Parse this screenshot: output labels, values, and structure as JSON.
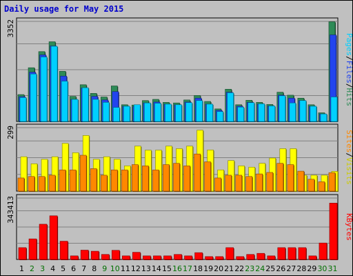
{
  "title": "Daily usage for May 2015",
  "chart_data": [
    {
      "type": "bar",
      "categories": [
        "1",
        "2",
        "3",
        "4",
        "5",
        "6",
        "7",
        "8",
        "9",
        "10",
        "11",
        "12",
        "13",
        "14",
        "15",
        "16",
        "17",
        "18",
        "19",
        "20",
        "21",
        "22",
        "23",
        "24",
        "25",
        "26",
        "27",
        "28",
        "29",
        "30",
        "31"
      ],
      "weekend_days": [
        "2",
        "3",
        "9",
        "10",
        "16",
        "17",
        "23",
        "24",
        "30",
        "31"
      ],
      "ylim": [
        0,
        3352
      ],
      "tick_label": "3352",
      "grid": true,
      "series": [
        {
          "name": "Hits",
          "color": "#2e8b57",
          "values": [
            900,
            1800,
            2340,
            2670,
            1680,
            840,
            1230,
            940,
            820,
            1190,
            560,
            550,
            700,
            740,
            640,
            620,
            720,
            870,
            670,
            420,
            1080,
            560,
            710,
            640,
            570,
            980,
            880,
            780,
            560,
            290,
            3340
          ]
        },
        {
          "name": "Files",
          "color": "#2244ee",
          "values": [
            830,
            1650,
            2230,
            2530,
            1520,
            740,
            1120,
            840,
            720,
            1000,
            510,
            500,
            620,
            650,
            580,
            560,
            650,
            780,
            580,
            370,
            980,
            510,
            640,
            580,
            520,
            880,
            780,
            700,
            510,
            250,
            2900
          ]
        },
        {
          "name": "Pages",
          "color": "#00d0ff",
          "values": [
            800,
            1590,
            2160,
            2520,
            1350,
            740,
            1130,
            740,
            640,
            470,
            510,
            560,
            620,
            610,
            580,
            560,
            630,
            700,
            580,
            330,
            960,
            480,
            630,
            590,
            520,
            860,
            620,
            700,
            510,
            250,
            820
          ]
        }
      ]
    },
    {
      "type": "bar",
      "categories": [
        "1",
        "2",
        "3",
        "4",
        "5",
        "6",
        "7",
        "8",
        "9",
        "10",
        "11",
        "12",
        "13",
        "14",
        "15",
        "16",
        "17",
        "18",
        "19",
        "20",
        "21",
        "22",
        "23",
        "24",
        "25",
        "26",
        "27",
        "28",
        "29",
        "30",
        "31"
      ],
      "ylim": [
        0,
        299
      ],
      "tick_label": "299",
      "grid": true,
      "series": [
        {
          "name": "Visits",
          "color": "#ffff00",
          "values": [
            162,
            129,
            150,
            162,
            225,
            181,
            262,
            150,
            162,
            150,
            119,
            212,
            193,
            193,
            212,
            200,
            212,
            287,
            194,
            100,
            144,
            119,
            113,
            131,
            156,
            200,
            200,
            75,
            75,
            75,
            93
          ]
        },
        {
          "name": "Sites",
          "color": "#ff8800",
          "values": [
            62,
            69,
            69,
            75,
            100,
            100,
            169,
            106,
            75,
            100,
            100,
            125,
            119,
            100,
            125,
            131,
            119,
            175,
            138,
            62,
            75,
            75,
            69,
            81,
            88,
            131,
            125,
            94,
            56,
            44,
            87
          ]
        }
      ]
    },
    {
      "type": "bar",
      "categories": [
        "1",
        "2",
        "3",
        "4",
        "5",
        "6",
        "7",
        "8",
        "9",
        "10",
        "11",
        "12",
        "13",
        "14",
        "15",
        "16",
        "17",
        "18",
        "19",
        "20",
        "21",
        "22",
        "23",
        "24",
        "25",
        "26",
        "27",
        "28",
        "29",
        "30",
        "31"
      ],
      "ylim": [
        0,
        343413
      ],
      "tick_label": "343413",
      "grid": true,
      "series": [
        {
          "name": "KBytes",
          "color": "#ff0000",
          "values": [
            66000,
            115000,
            197000,
            244000,
            102000,
            20000,
            52000,
            46000,
            28000,
            51000,
            20000,
            40000,
            20000,
            20000,
            20000,
            28000,
            20000,
            38000,
            16000,
            16000,
            66000,
            16000,
            28000,
            34000,
            20000,
            66000,
            66000,
            66000,
            20000,
            92000,
            315000
          ]
        }
      ]
    }
  ],
  "legend": {
    "top": [
      "Pages",
      "/",
      "Files",
      "/",
      "Hits"
    ],
    "mid": [
      "Sites",
      "/",
      "Visits"
    ],
    "bottom": [
      "KBytes"
    ]
  }
}
